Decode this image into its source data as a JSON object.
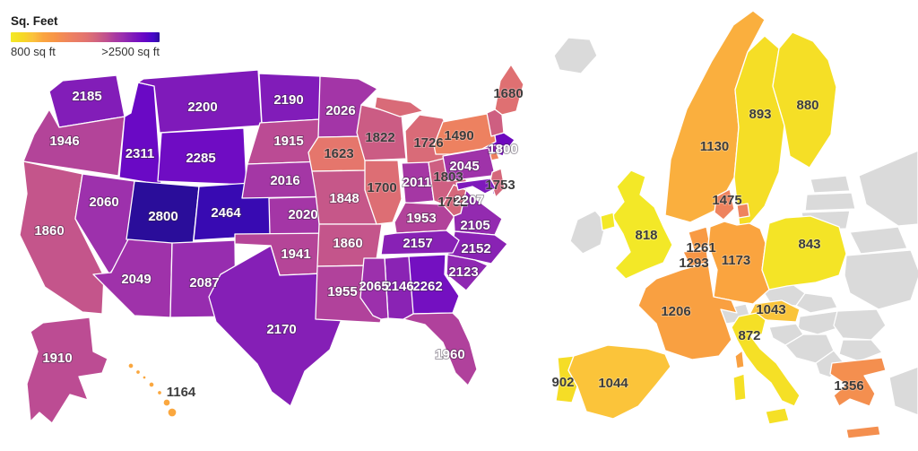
{
  "page": {
    "background": "#ffffff"
  },
  "legend": {
    "title": "Sq. Feet",
    "min_label": "800 sq ft",
    "max_label": ">2500 sq ft"
  },
  "chart_data": {
    "type": "heatmap",
    "subtype": "choropleth-map",
    "title": "Sq. Feet",
    "unit": "sq ft",
    "legend": {
      "min_label": "800 sq ft",
      "max_label": ">2500 sq ft",
      "position": "top-left"
    },
    "scale": {
      "min": 800,
      "max": 2500,
      "stops": [
        {
          "t": 0.0,
          "c": "#f3ea27"
        },
        {
          "t": 0.08,
          "c": "#f6d825"
        },
        {
          "t": 0.15,
          "c": "#fbc23c"
        },
        {
          "t": 0.22,
          "c": "#faa43f"
        },
        {
          "t": 0.3,
          "c": "#f79447"
        },
        {
          "t": 0.35,
          "c": "#f28a55"
        },
        {
          "t": 0.42,
          "c": "#ec7f63"
        },
        {
          "t": 0.5,
          "c": "#e3746e"
        },
        {
          "t": 0.55,
          "c": "#d86a79"
        },
        {
          "t": 0.6,
          "c": "#cb5c84"
        },
        {
          "t": 0.65,
          "c": "#bd4d92"
        },
        {
          "t": 0.7,
          "c": "#a93aa1"
        },
        {
          "t": 0.75,
          "c": "#9a2fae"
        },
        {
          "t": 0.8,
          "c": "#8721b5"
        },
        {
          "t": 0.85,
          "c": "#7712c0"
        },
        {
          "t": 0.9,
          "c": "#6606c6"
        },
        {
          "t": 0.96,
          "c": "#4408c8"
        },
        {
          "t": 1.0,
          "c": "#2a0d9a"
        }
      ]
    },
    "gray_color": "#dadada",
    "label_light_threshold": 1830,
    "series": [
      {
        "name": "United States",
        "points": [
          {
            "code": "WA",
            "name": "Washington",
            "value": 2185
          },
          {
            "code": "OR",
            "name": "Oregon",
            "value": 1946
          },
          {
            "code": "CA",
            "name": "California",
            "value": 1860
          },
          {
            "code": "ID",
            "name": "Idaho",
            "value": 2311
          },
          {
            "code": "NV",
            "name": "Nevada",
            "value": 2060
          },
          {
            "code": "MT",
            "name": "Montana",
            "value": 2200
          },
          {
            "code": "WY",
            "name": "Wyoming",
            "value": 2285
          },
          {
            "code": "UT",
            "name": "Utah",
            "value": 2800
          },
          {
            "code": "CO",
            "name": "Colorado",
            "value": 2464
          },
          {
            "code": "AZ",
            "name": "Arizona",
            "value": 2049
          },
          {
            "code": "NM",
            "name": "New Mexico",
            "value": 2087
          },
          {
            "code": "ND",
            "name": "North Dakota",
            "value": 2190
          },
          {
            "code": "SD",
            "name": "South Dakota",
            "value": 1915
          },
          {
            "code": "NE",
            "name": "Nebraska",
            "value": 2016
          },
          {
            "code": "KS",
            "name": "Kansas",
            "value": 2020
          },
          {
            "code": "OK",
            "name": "Oklahoma",
            "value": 1941
          },
          {
            "code": "TX",
            "name": "Texas",
            "value": 2170
          },
          {
            "code": "MN",
            "name": "Minnesota",
            "value": 2026
          },
          {
            "code": "IA",
            "name": "Iowa",
            "value": 1623
          },
          {
            "code": "MO",
            "name": "Missouri",
            "value": 1848
          },
          {
            "code": "AR",
            "name": "Arkansas",
            "value": 1860
          },
          {
            "code": "LA",
            "name": "Louisiana",
            "value": 1955
          },
          {
            "code": "WI",
            "name": "Wisconsin",
            "value": 1822
          },
          {
            "code": "IL",
            "name": "Illinois",
            "value": 1700
          },
          {
            "code": "MI",
            "name": "Michigan",
            "value": 1726
          },
          {
            "code": "IN",
            "name": "Indiana",
            "value": 2011
          },
          {
            "code": "OH",
            "name": "Ohio",
            "value": 1803
          },
          {
            "code": "KY",
            "name": "Kentucky",
            "value": 1953
          },
          {
            "code": "WV",
            "name": "West Virginia",
            "value": 1752
          },
          {
            "code": "VA",
            "name": "Virginia",
            "value": 2105
          },
          {
            "code": "NC",
            "name": "North Carolina",
            "value": 2152
          },
          {
            "code": "SC",
            "name": "South Carolina",
            "value": 2123
          },
          {
            "code": "GA",
            "name": "Georgia",
            "value": 2262
          },
          {
            "code": "AL",
            "name": "Alabama",
            "value": 2146
          },
          {
            "code": "MS",
            "name": "Mississippi",
            "value": 2065
          },
          {
            "code": "TN",
            "name": "Tennessee",
            "value": 2157
          },
          {
            "code": "FL",
            "name": "Florida",
            "value": 1960
          },
          {
            "code": "NY",
            "name": "New York",
            "value": 1490
          },
          {
            "code": "PA",
            "name": "Pennsylvania",
            "value": 2045
          },
          {
            "code": "NJ",
            "name": "New Jersey",
            "value": 1753
          },
          {
            "code": "MD",
            "name": "Maryland",
            "value": 2207,
            "light": true
          },
          {
            "code": "ME",
            "name": "Maine",
            "value": 1680
          },
          {
            "code": "NH",
            "name": "New Hampshire",
            "value": 1800,
            "light": true
          },
          {
            "code": "AK",
            "name": "Alaska",
            "value": 1910
          },
          {
            "code": "HI",
            "name": "Hawaii",
            "value": 1164
          }
        ],
        "unlabeled": [
          {
            "code": "VT",
            "name": "Vermont",
            "color": "#8b23b0"
          },
          {
            "code": "MA",
            "name": "Massachusetts",
            "color": "#6d08be"
          },
          {
            "code": "CT",
            "name": "Connecticut",
            "color": "#8b23b0"
          },
          {
            "code": "RI",
            "name": "Rhode Island",
            "color": "#7611ba"
          },
          {
            "code": "DE",
            "name": "Delaware",
            "color": "#7008bb"
          }
        ]
      },
      {
        "name": "Europe",
        "points": [
          {
            "code": "NO",
            "name": "Norway",
            "value": 1130
          },
          {
            "code": "SE",
            "name": "Sweden",
            "value": 893
          },
          {
            "code": "FI",
            "name": "Finland",
            "value": 880
          },
          {
            "code": "DK",
            "name": "Denmark",
            "value": 1475
          },
          {
            "code": "UK",
            "name": "United Kingdom",
            "value": 818
          },
          {
            "code": "NL",
            "name": "Netherlands",
            "value": 1261
          },
          {
            "code": "BE",
            "name": "Belgium",
            "value": 1293
          },
          {
            "code": "DE",
            "name": "Germany",
            "value": 1173
          },
          {
            "code": "PL",
            "name": "Poland",
            "value": 843
          },
          {
            "code": "FR",
            "name": "France",
            "value": 1206
          },
          {
            "code": "AT",
            "name": "Austria",
            "value": 1043
          },
          {
            "code": "PT",
            "name": "Portugal",
            "value": 902
          },
          {
            "code": "ES",
            "name": "Spain",
            "value": 1044
          },
          {
            "code": "IT",
            "name": "Italy",
            "value": 872
          },
          {
            "code": "GR",
            "name": "Greece",
            "value": 1356
          }
        ],
        "gray_regions": [
          "Iceland",
          "Ireland",
          "Estonia",
          "Latvia",
          "Lithuania",
          "Belarus",
          "Ukraine",
          "Russia",
          "Czechia",
          "Slovakia",
          "Hungary",
          "Romania",
          "Bulgaria",
          "Switzerland",
          "Croatia & Slovenia",
          "Serbia & Bosnia",
          "Albania & North Macedonia",
          "Turkey"
        ]
      }
    ]
  }
}
